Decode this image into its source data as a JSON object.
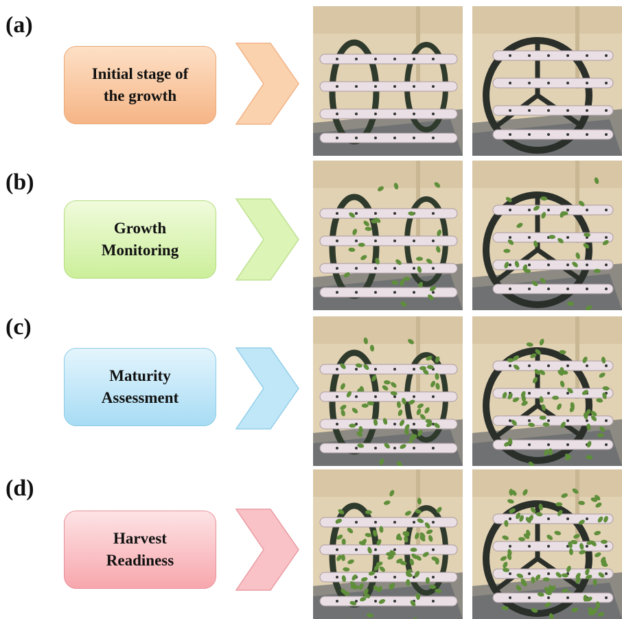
{
  "rows": [
    {
      "id": "a",
      "label": "(a)",
      "line1": "Initial stage of",
      "line2": "the growth",
      "color": "#f6b586",
      "stroke": "#e9a877",
      "plants": 0
    },
    {
      "id": "b",
      "label": "(b)",
      "line1": "Growth",
      "line2": "Monitoring",
      "color": "#ccef9a",
      "stroke": "#b3dc7e",
      "plants": 1
    },
    {
      "id": "c",
      "label": "(c)",
      "line1": "Maturity",
      "line2": "Assessment",
      "color": "#a7dcf4",
      "stroke": "#8ccbe7",
      "plants": 2
    },
    {
      "id": "d",
      "label": "(d)",
      "line1": "Harvest",
      "line2": "Readiness",
      "color": "#f7a7ad",
      "stroke": "#e79199",
      "plants": 3
    }
  ],
  "icons": {
    "arrow": "chevron-right-icon"
  }
}
